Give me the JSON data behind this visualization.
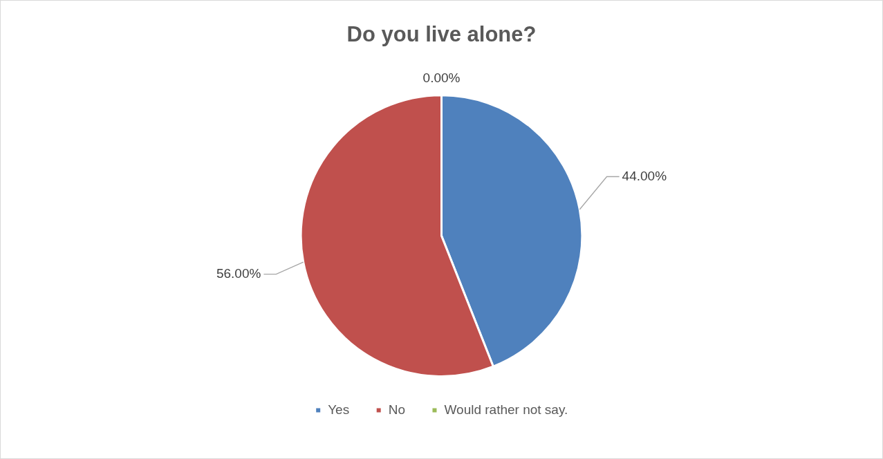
{
  "chart_data": {
    "type": "pie",
    "title": "Do you live alone?",
    "categories": [
      "Yes",
      "No",
      "Would rather not say."
    ],
    "values": [
      44,
      56,
      0
    ],
    "colors": [
      "#4f81bd",
      "#c0504d",
      "#9bbb59"
    ],
    "value_labels": [
      "44.00%",
      "56.00%",
      "0.00%"
    ],
    "legend": "bottom"
  }
}
